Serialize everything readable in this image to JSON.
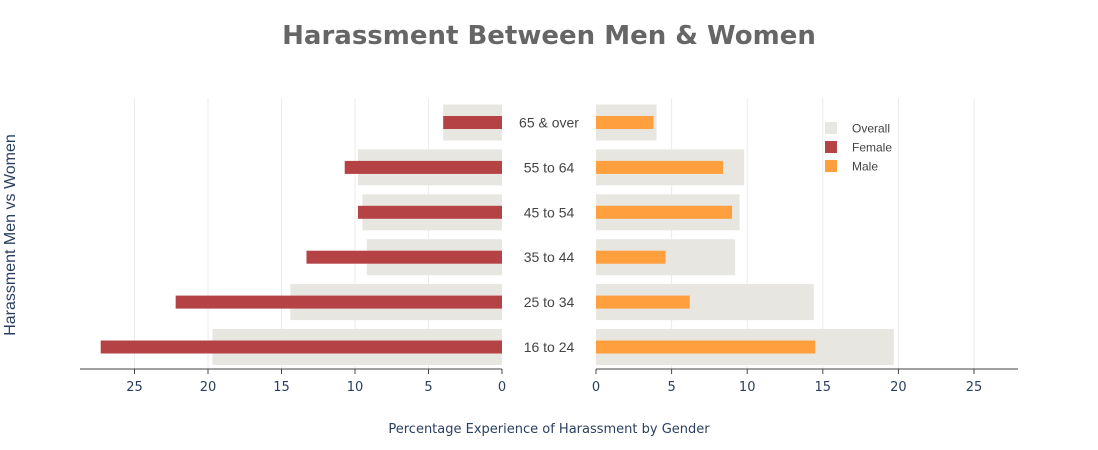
{
  "chart_data": {
    "type": "bar",
    "orientation": "horizontal",
    "title": "Harassment Between Men & Women",
    "ylabel": "Harassment Men vs Women",
    "xlabel": "Percentage Experience of Harassment by Gender",
    "categories": [
      "65 & over",
      "55 to 64",
      "45 to 54",
      "35 to 44",
      "25 to 34",
      "16 to 24"
    ],
    "left_panel": {
      "xlim": [
        0,
        28
      ],
      "reversed": true,
      "ticks": [
        25,
        20,
        15,
        10,
        5,
        0
      ],
      "overall": [
        4,
        9.8,
        9.5,
        9.2,
        14.4,
        19.7
      ],
      "female": [
        4,
        10.7,
        9.8,
        13.3,
        22.2,
        27.3
      ]
    },
    "right_panel": {
      "xlim": [
        0,
        28
      ],
      "ticks": [
        0,
        5,
        10,
        15,
        20,
        25
      ],
      "overall": [
        4,
        9.8,
        9.5,
        9.2,
        14.4,
        19.7
      ],
      "male": [
        3.8,
        8.4,
        9.0,
        4.6,
        6.2,
        14.5
      ]
    },
    "series": [
      {
        "name": "Overall",
        "color": "#e8e6e1"
      },
      {
        "name": "Female",
        "color": "#b54346"
      },
      {
        "name": "Male",
        "color": "#ff9f3d"
      }
    ],
    "grid": true,
    "legend_position": "top-right"
  }
}
